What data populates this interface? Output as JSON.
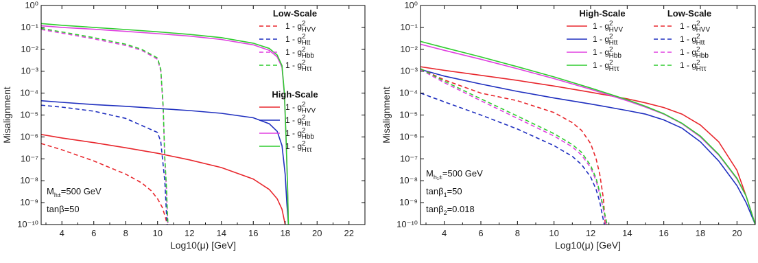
{
  "chart_data": [
    {
      "type": "line",
      "xlabel": "Log10(μ) [GeV]",
      "ylabel": "Misalignment",
      "xlim": [
        2.7,
        23
      ],
      "ylim": [
        1e-10,
        1
      ],
      "yscale": "log",
      "xticks": [
        4,
        6,
        8,
        10,
        12,
        14,
        16,
        18,
        20,
        22
      ],
      "yticks": [
        1e-10,
        1e-09,
        1e-08,
        1e-07,
        1e-06,
        1e-05,
        0.0001,
        0.001,
        0.01,
        0.1,
        1
      ],
      "legend_groups": [
        {
          "title": "Low-Scale",
          "style": "dashed",
          "placement": "top-right"
        },
        {
          "title": "High-Scale",
          "style": "solid",
          "placement": "center-right"
        }
      ],
      "annotations": [
        {
          "main": "M",
          "sub": "h±",
          "rest": "=500 GeV"
        },
        {
          "main": "tanβ=50",
          "sub": "",
          "rest": ""
        }
      ],
      "series": [
        {
          "label": "1 - g²HVV",
          "group": "Low-Scale",
          "color": "#e8262c",
          "dash": true,
          "x": [
            2.7,
            4,
            6,
            8,
            9,
            9.6,
            10,
            10.3,
            10.5,
            10.6
          ],
          "y": [
            5e-07,
            2.6e-07,
            8e-08,
            2e-08,
            8e-09,
            3.5e-09,
            1.5e-09,
            6e-10,
            2e-10,
            1e-10
          ]
        },
        {
          "label": "1 - g²Htt",
          "group": "Low-Scale",
          "color": "#1f2fbf",
          "dash": true,
          "x": [
            2.7,
            4,
            6,
            8,
            10,
            10.2,
            10.35,
            10.45,
            10.5,
            10.55,
            10.6
          ],
          "y": [
            2.8e-05,
            2.3e-05,
            1.5e-05,
            7e-06,
            1.6e-06,
            6e-07,
            5e-08,
            1e-08,
            2e-09,
            4e-10,
            1e-10
          ]
        },
        {
          "label": "1 - g²Hbb",
          "group": "Low-Scale",
          "color": "#e040e0",
          "dash": true,
          "x": [
            2.7,
            4,
            6,
            8,
            9,
            10,
            10.2,
            10.35,
            10.45,
            10.55,
            10.6,
            10.65
          ],
          "y": [
            0.08,
            0.055,
            0.03,
            0.015,
            0.009,
            0.0035,
            0.001,
            2e-05,
            1e-07,
            5e-09,
            5e-10,
            1e-10
          ]
        },
        {
          "label": "1 - g²Hττ",
          "group": "Low-Scale",
          "color": "#2ecc2e",
          "dash": true,
          "x": [
            2.7,
            4,
            6,
            8,
            9,
            10,
            10.2,
            10.35,
            10.45,
            10.55,
            10.6,
            10.65
          ],
          "y": [
            0.09,
            0.062,
            0.034,
            0.017,
            0.01,
            0.004,
            0.0012,
            2.4e-05,
            1.2e-07,
            6e-09,
            6e-10,
            1e-10
          ]
        },
        {
          "label": "1 - g²HVV",
          "group": "High-Scale",
          "color": "#e8262c",
          "dash": false,
          "x": [
            2.7,
            4,
            6,
            8,
            10,
            12,
            14,
            16,
            17,
            17.5,
            17.8,
            18
          ],
          "y": [
            1.3e-06,
            9e-07,
            5.5e-07,
            3.2e-07,
            1.8e-07,
            9e-08,
            4e-08,
            1.2e-08,
            4e-09,
            1.5e-09,
            5e-10,
            1e-10
          ]
        },
        {
          "label": "1 - g²Htt",
          "group": "High-Scale",
          "color": "#1f2fbf",
          "dash": false,
          "x": [
            2.7,
            4,
            6,
            8,
            10,
            12,
            14,
            16,
            17,
            17.5,
            17.8,
            18,
            18.1,
            18.2
          ],
          "y": [
            4.5e-05,
            3.8e-05,
            3e-05,
            2.5e-05,
            2e-05,
            1.6e-05,
            1.2e-05,
            7.5e-06,
            4e-06,
            1.8e-06,
            4e-07,
            2e-08,
            1e-09,
            1e-10
          ]
        },
        {
          "label": "1 - g²Hbb",
          "group": "High-Scale",
          "color": "#e040e0",
          "dash": false,
          "x": [
            2.7,
            4,
            6,
            8,
            10,
            12,
            14,
            16,
            17,
            17.5,
            17.8,
            17.95,
            18.05,
            18.15,
            18.2
          ],
          "y": [
            0.12,
            0.1,
            0.082,
            0.066,
            0.052,
            0.04,
            0.028,
            0.016,
            0.009,
            0.0045,
            0.0015,
            8e-05,
            1e-06,
            5e-09,
            1e-10
          ]
        },
        {
          "label": "1 - g²Hττ",
          "group": "High-Scale",
          "color": "#2ecc2e",
          "dash": false,
          "x": [
            2.7,
            4,
            6,
            8,
            10,
            12,
            14,
            16,
            17,
            17.5,
            17.8,
            17.95,
            18.05,
            18.15,
            18.2
          ],
          "y": [
            0.15,
            0.125,
            0.1,
            0.08,
            0.063,
            0.048,
            0.034,
            0.019,
            0.011,
            0.0055,
            0.0018,
            0.0001,
            1.2e-06,
            6e-09,
            1e-10
          ]
        }
      ]
    },
    {
      "type": "line",
      "xlabel": "Log10(μ) [GeV]",
      "ylabel": "Misalignment",
      "xlim": [
        2.7,
        21
      ],
      "ylim": [
        1e-10,
        1
      ],
      "yscale": "log",
      "xticks": [
        4,
        6,
        8,
        10,
        12,
        14,
        16,
        18,
        20
      ],
      "yticks": [
        1e-10,
        1e-09,
        1e-08,
        1e-07,
        1e-06,
        1e-05,
        0.0001,
        0.001,
        0.01,
        0.1,
        1
      ],
      "legend_groups": [
        {
          "title": "High-Scale",
          "style": "solid",
          "placement": "top-center"
        },
        {
          "title": "Low-Scale",
          "style": "dashed",
          "placement": "top-right"
        }
      ],
      "annotations": [
        {
          "main": "M",
          "sub": "h₁±",
          "rest": "=500 GeV"
        },
        {
          "main": "tanβ",
          "sub": "1",
          "rest": "=50"
        },
        {
          "main": "tanβ",
          "sub": "2",
          "rest": "=0.018"
        }
      ],
      "series": [
        {
          "label": "1 - g²HVV",
          "group": "High-Scale",
          "color": "#e8262c",
          "dash": false,
          "x": [
            2.7,
            4,
            6,
            8,
            10,
            12,
            14,
            15,
            16,
            17,
            18,
            19,
            20,
            20.5,
            21
          ],
          "y": [
            0.0016,
            0.0011,
            0.00065,
            0.00038,
            0.00021,
            0.00011,
            5.5e-05,
            3.6e-05,
            2.2e-05,
            1.1e-05,
            3.5e-06,
            6e-07,
            3e-08,
            2e-09,
            1e-10
          ]
        },
        {
          "label": "1 - g²Htt",
          "group": "High-Scale",
          "color": "#1f2fbf",
          "dash": false,
          "x": [
            2.7,
            4,
            6,
            8,
            10,
            12,
            14,
            15,
            16,
            17,
            18,
            19,
            20,
            20.5,
            21
          ],
          "y": [
            0.0012,
            0.0006,
            0.00026,
            0.00012,
            6e-05,
            3.2e-05,
            1.6e-05,
            1.1e-05,
            6e-06,
            2.5e-06,
            6e-07,
            8e-08,
            6e-09,
            1e-09,
            1e-10
          ]
        },
        {
          "label": "1 - g²Hbb",
          "group": "High-Scale",
          "color": "#e040e0",
          "dash": false,
          "x": [
            2.7,
            4,
            6,
            8,
            10,
            12,
            14,
            15,
            16,
            17,
            18,
            19,
            20,
            20.5,
            21
          ],
          "y": [
            0.017,
            0.009,
            0.0035,
            0.0013,
            0.00046,
            0.00015,
            4.5e-05,
            2.3e-05,
            1.1e-05,
            4e-06,
            1e-06,
            1.5e-07,
            1.2e-08,
            2e-09,
            1e-10
          ]
        },
        {
          "label": "1 - g²Hττ",
          "group": "High-Scale",
          "color": "#2ecc2e",
          "dash": false,
          "x": [
            2.7,
            4,
            6,
            8,
            10,
            12,
            14,
            15,
            16,
            17,
            18,
            19,
            20,
            20.5,
            21
          ],
          "y": [
            0.023,
            0.012,
            0.0045,
            0.0016,
            0.00055,
            0.00017,
            5e-05,
            2.5e-05,
            1.15e-05,
            4.2e-06,
            1.1e-06,
            1.6e-07,
            1.3e-08,
            2e-09,
            1e-10
          ]
        },
        {
          "label": "1 - g²HVV",
          "group": "Low-Scale",
          "color": "#e8262c",
          "dash": true,
          "x": [
            2.7,
            4,
            6,
            8,
            10,
            11,
            11.5,
            12,
            12.3,
            12.5,
            12.7,
            12.8
          ],
          "y": [
            0.0013,
            0.0004,
            0.0001,
            4.5e-05,
            1.3e-05,
            4.5e-06,
            2e-06,
            5e-07,
            1e-07,
            2e-08,
            1.5e-09,
            1e-10
          ]
        },
        {
          "label": "1 - g²Htt",
          "group": "Low-Scale",
          "color": "#1f2fbf",
          "dash": true,
          "x": [
            2.7,
            4,
            6,
            8,
            10,
            11,
            11.5,
            12,
            12.3,
            12.5,
            12.65,
            12.75
          ],
          "y": [
            0.0001,
            4e-05,
            1e-05,
            2.3e-06,
            4e-07,
            1.3e-07,
            5.5e-08,
            1.5e-08,
            4e-09,
            1.1e-09,
            2.5e-10,
            1e-10
          ]
        },
        {
          "label": "1 - g²Hbb",
          "group": "Low-Scale",
          "color": "#e040e0",
          "dash": true,
          "x": [
            2.7,
            4,
            6,
            8,
            10,
            11,
            11.5,
            12,
            12.3,
            12.5,
            12.7,
            12.85
          ],
          "y": [
            0.0012,
            0.0003,
            4.5e-05,
            7e-06,
            1.1e-06,
            3.5e-07,
            1.5e-07,
            4e-08,
            1e-08,
            2.5e-09,
            5e-10,
            1e-10
          ]
        },
        {
          "label": "1 - g²Hττ",
          "group": "Low-Scale",
          "color": "#2ecc2e",
          "dash": true,
          "x": [
            2.7,
            4,
            6,
            8,
            10,
            11,
            11.5,
            12,
            12.3,
            12.5,
            12.7,
            12.9
          ],
          "y": [
            0.0013,
            0.00035,
            5.5e-05,
            9e-06,
            1.4e-06,
            4.5e-07,
            2e-07,
            5e-08,
            1.3e-08,
            3e-09,
            6e-10,
            1e-10
          ]
        }
      ]
    }
  ]
}
